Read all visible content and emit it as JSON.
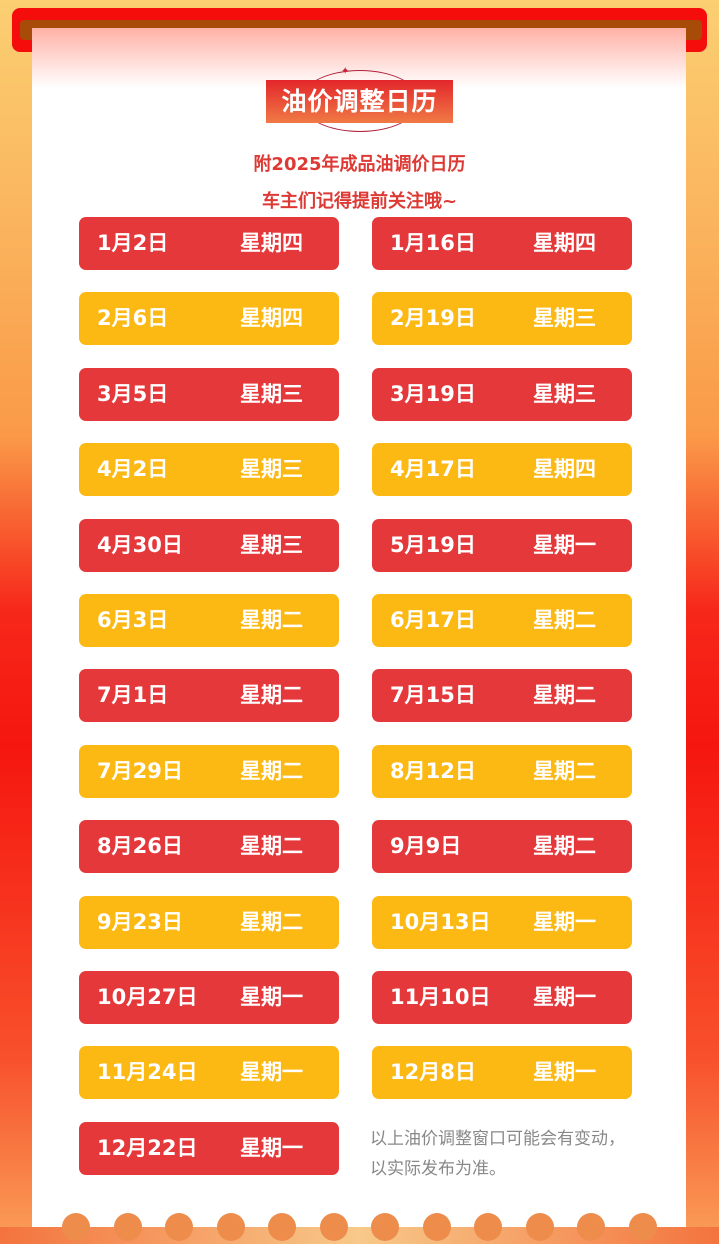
{
  "title": "油价调整日历",
  "subtitle1": "附2025年成品油调价日历",
  "subtitle2": "车主们记得提前关注哦~",
  "colors": {
    "red": "#e5383b",
    "yellow": "#fdb913"
  },
  "dates": [
    {
      "date": "1月2日",
      "weekday": "星期四"
    },
    {
      "date": "1月16日",
      "weekday": "星期四"
    },
    {
      "date": "2月6日",
      "weekday": "星期四"
    },
    {
      "date": "2月19日",
      "weekday": "星期三"
    },
    {
      "date": "3月5日",
      "weekday": "星期三"
    },
    {
      "date": "3月19日",
      "weekday": "星期三"
    },
    {
      "date": "4月2日",
      "weekday": "星期三"
    },
    {
      "date": "4月17日",
      "weekday": "星期四"
    },
    {
      "date": "4月30日",
      "weekday": "星期三"
    },
    {
      "date": "5月19日",
      "weekday": "星期一"
    },
    {
      "date": "6月3日",
      "weekday": "星期二"
    },
    {
      "date": "6月17日",
      "weekday": "星期二"
    },
    {
      "date": "7月1日",
      "weekday": "星期二"
    },
    {
      "date": "7月15日",
      "weekday": "星期二"
    },
    {
      "date": "7月29日",
      "weekday": "星期二"
    },
    {
      "date": "8月12日",
      "weekday": "星期二"
    },
    {
      "date": "8月26日",
      "weekday": "星期二"
    },
    {
      "date": "9月9日",
      "weekday": "星期二"
    },
    {
      "date": "9月23日",
      "weekday": "星期二"
    },
    {
      "date": "10月13日",
      "weekday": "星期一"
    },
    {
      "date": "10月27日",
      "weekday": "星期一"
    },
    {
      "date": "11月10日",
      "weekday": "星期一"
    },
    {
      "date": "11月24日",
      "weekday": "星期一"
    },
    {
      "date": "12月8日",
      "weekday": "星期一"
    },
    {
      "date": "12月22日",
      "weekday": "星期一"
    }
  ],
  "note_line1": "以上油价调整窗口可能会有变动，",
  "note_line2": "以实际发布为准。"
}
